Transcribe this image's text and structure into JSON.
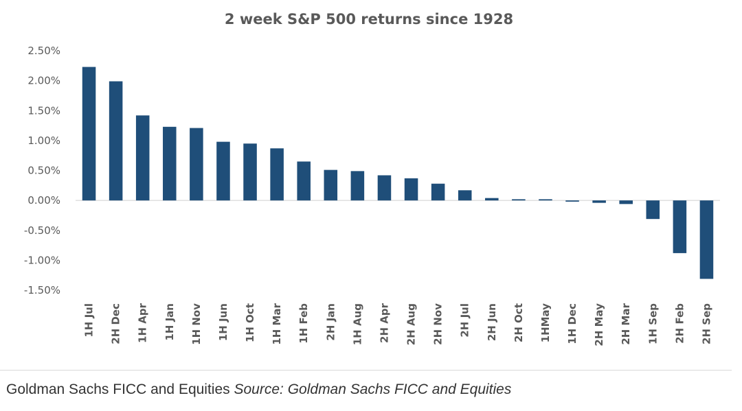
{
  "chart_data": {
    "type": "bar",
    "title": "2 week S&P 500 returns since 1928",
    "xlabel": "",
    "ylabel": "",
    "ylim": [
      -1.5,
      2.5
    ],
    "yticks": [
      2.5,
      2.0,
      1.5,
      1.0,
      0.5,
      0.0,
      -0.5,
      -1.0,
      -1.5
    ],
    "ytick_labels": [
      "2.50%",
      "2.00%",
      "1.50%",
      "1.00%",
      "0.50%",
      "0.00%",
      "-0.50%",
      "-1.00%",
      "-1.50%"
    ],
    "grid": false,
    "legend": "none",
    "bar_color": "#1f4e79",
    "categories": [
      "1H Jul",
      "2H Dec",
      "1H Apr",
      "1H Jan",
      "1H Nov",
      "1H Jun",
      "1H Oct",
      "1H Mar",
      "1H Feb",
      "2H Jan",
      "1H Aug",
      "2H Apr",
      "2H Aug",
      "2H Nov",
      "2H Jul",
      "2H Jun",
      "2H Oct",
      "1HMay",
      "1H Dec",
      "2H May",
      "2H Mar",
      "1H Sep",
      "2H Feb",
      "2H Sep"
    ],
    "values": [
      2.23,
      1.99,
      1.42,
      1.23,
      1.21,
      0.98,
      0.95,
      0.87,
      0.65,
      0.51,
      0.49,
      0.42,
      0.37,
      0.28,
      0.17,
      0.04,
      0.02,
      0.02,
      -0.02,
      -0.04,
      -0.06,
      -0.31,
      -0.88,
      -1.31
    ]
  },
  "caption": {
    "text": "Goldman Sachs FICC and Equities",
    "source": "Source: Goldman Sachs FICC and Equities"
  }
}
